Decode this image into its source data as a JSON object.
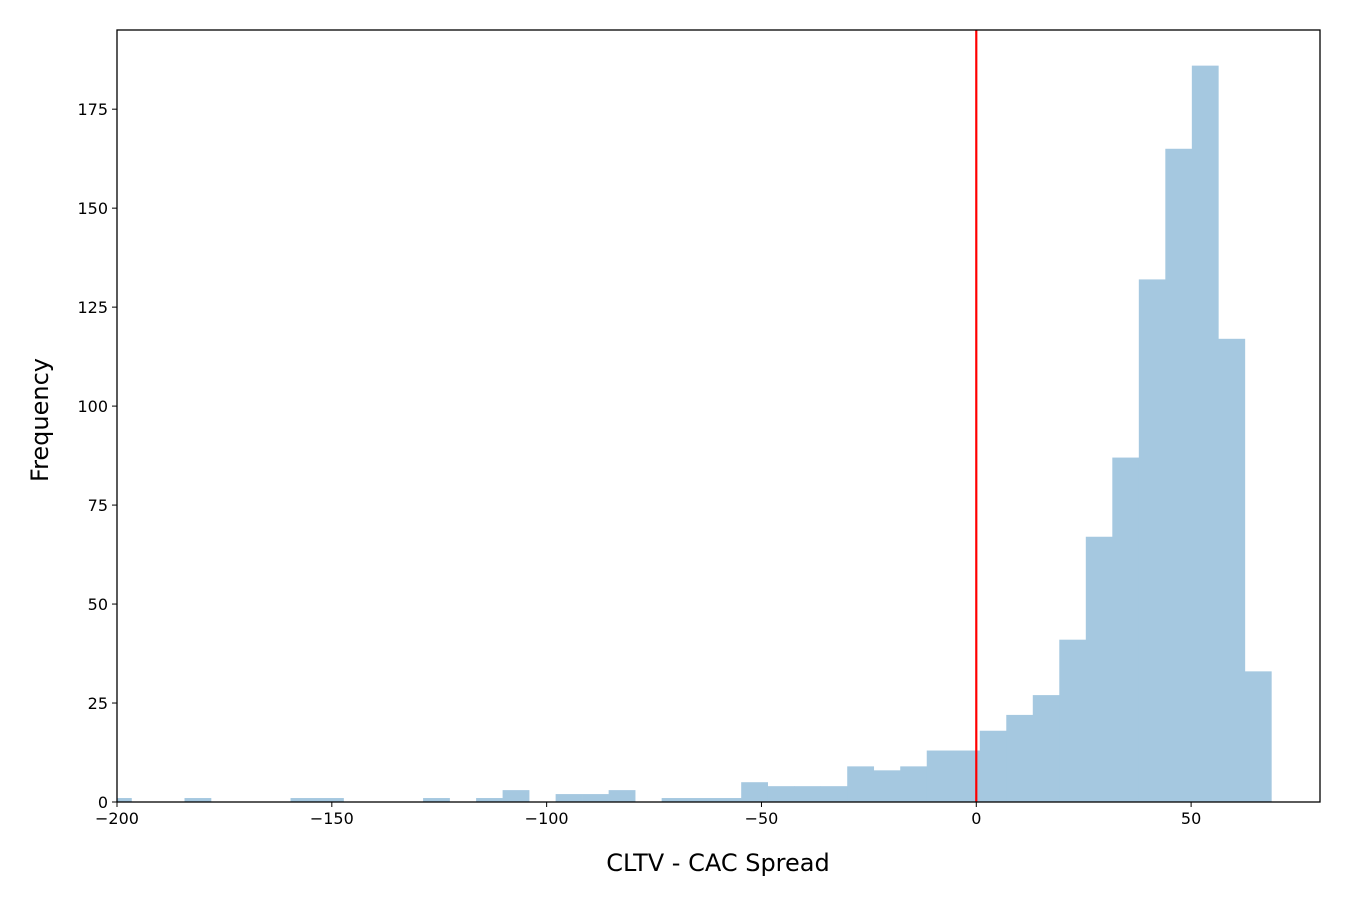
{
  "chart_data": {
    "type": "bar",
    "subtype": "histogram",
    "title": "",
    "xlabel": "CLTV - CAC Spread",
    "ylabel": "Frequency",
    "xlim": [
      -200,
      80
    ],
    "ylim": [
      0,
      195
    ],
    "xticks": [
      "−200",
      "−150",
      "−100",
      "−50",
      "0",
      "50"
    ],
    "xtick_values": [
      -200,
      -150,
      -100,
      -50,
      0,
      50
    ],
    "yticks": [
      "0",
      "25",
      "50",
      "75",
      "100",
      "125",
      "150",
      "175"
    ],
    "ytick_values": [
      0,
      25,
      50,
      75,
      100,
      125,
      150,
      175
    ],
    "grid": false,
    "bar_color": "#a5c8e0",
    "bin_start": -202.8,
    "bin_width": 6.17,
    "values": [
      1,
      0,
      0,
      1,
      0,
      0,
      0,
      1,
      1,
      0,
      0,
      0,
      1,
      0,
      1,
      3,
      0,
      2,
      2,
      3,
      0,
      1,
      1,
      1,
      5,
      4,
      4,
      4,
      9,
      8,
      9,
      13,
      13,
      18,
      22,
      27,
      41,
      67,
      87,
      132,
      165,
      186,
      117,
      33
    ],
    "reference_line": {
      "x": 0,
      "color": "#ff0000"
    }
  }
}
